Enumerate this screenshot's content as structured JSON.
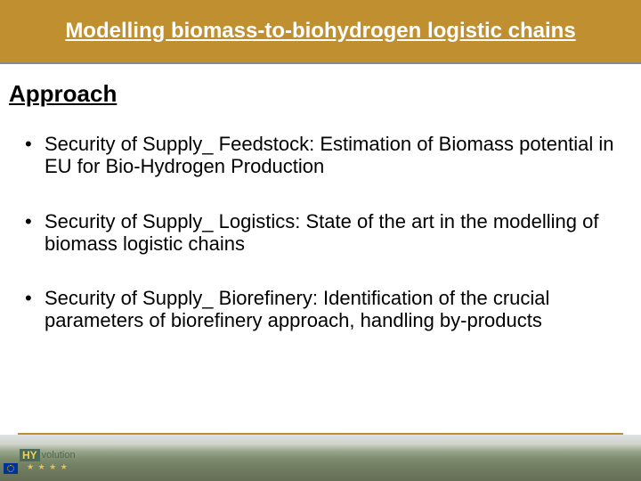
{
  "header": {
    "title": "Modelling biomass-to-biohydrogen logistic chains",
    "bg_color": "#c09030",
    "text_color": "#ffffff",
    "fontsize": 24
  },
  "section": {
    "heading": "Approach",
    "heading_fontsize": 26,
    "bullets": [
      "Security of Supply_ Feedstock: Estimation of Biomass potential in EU for Bio-Hydrogen Production",
      "Security of Supply_ Logistics: State of the art in the modelling of biomass logistic chains",
      "Security of Supply_ Biorefinery: Identification of the crucial parameters of biorefinery approach, handling by-products"
    ],
    "bullet_fontsize": 22,
    "text_color": "#000000"
  },
  "footer": {
    "logo_hy": "HY",
    "logo_suffix": "volution",
    "stars": "★ ★ ★ ★",
    "line_color": "#c09030",
    "logo_bg": "#4a6a5a",
    "logo_accent": "#f0d060"
  },
  "background_color": "#ffffff"
}
